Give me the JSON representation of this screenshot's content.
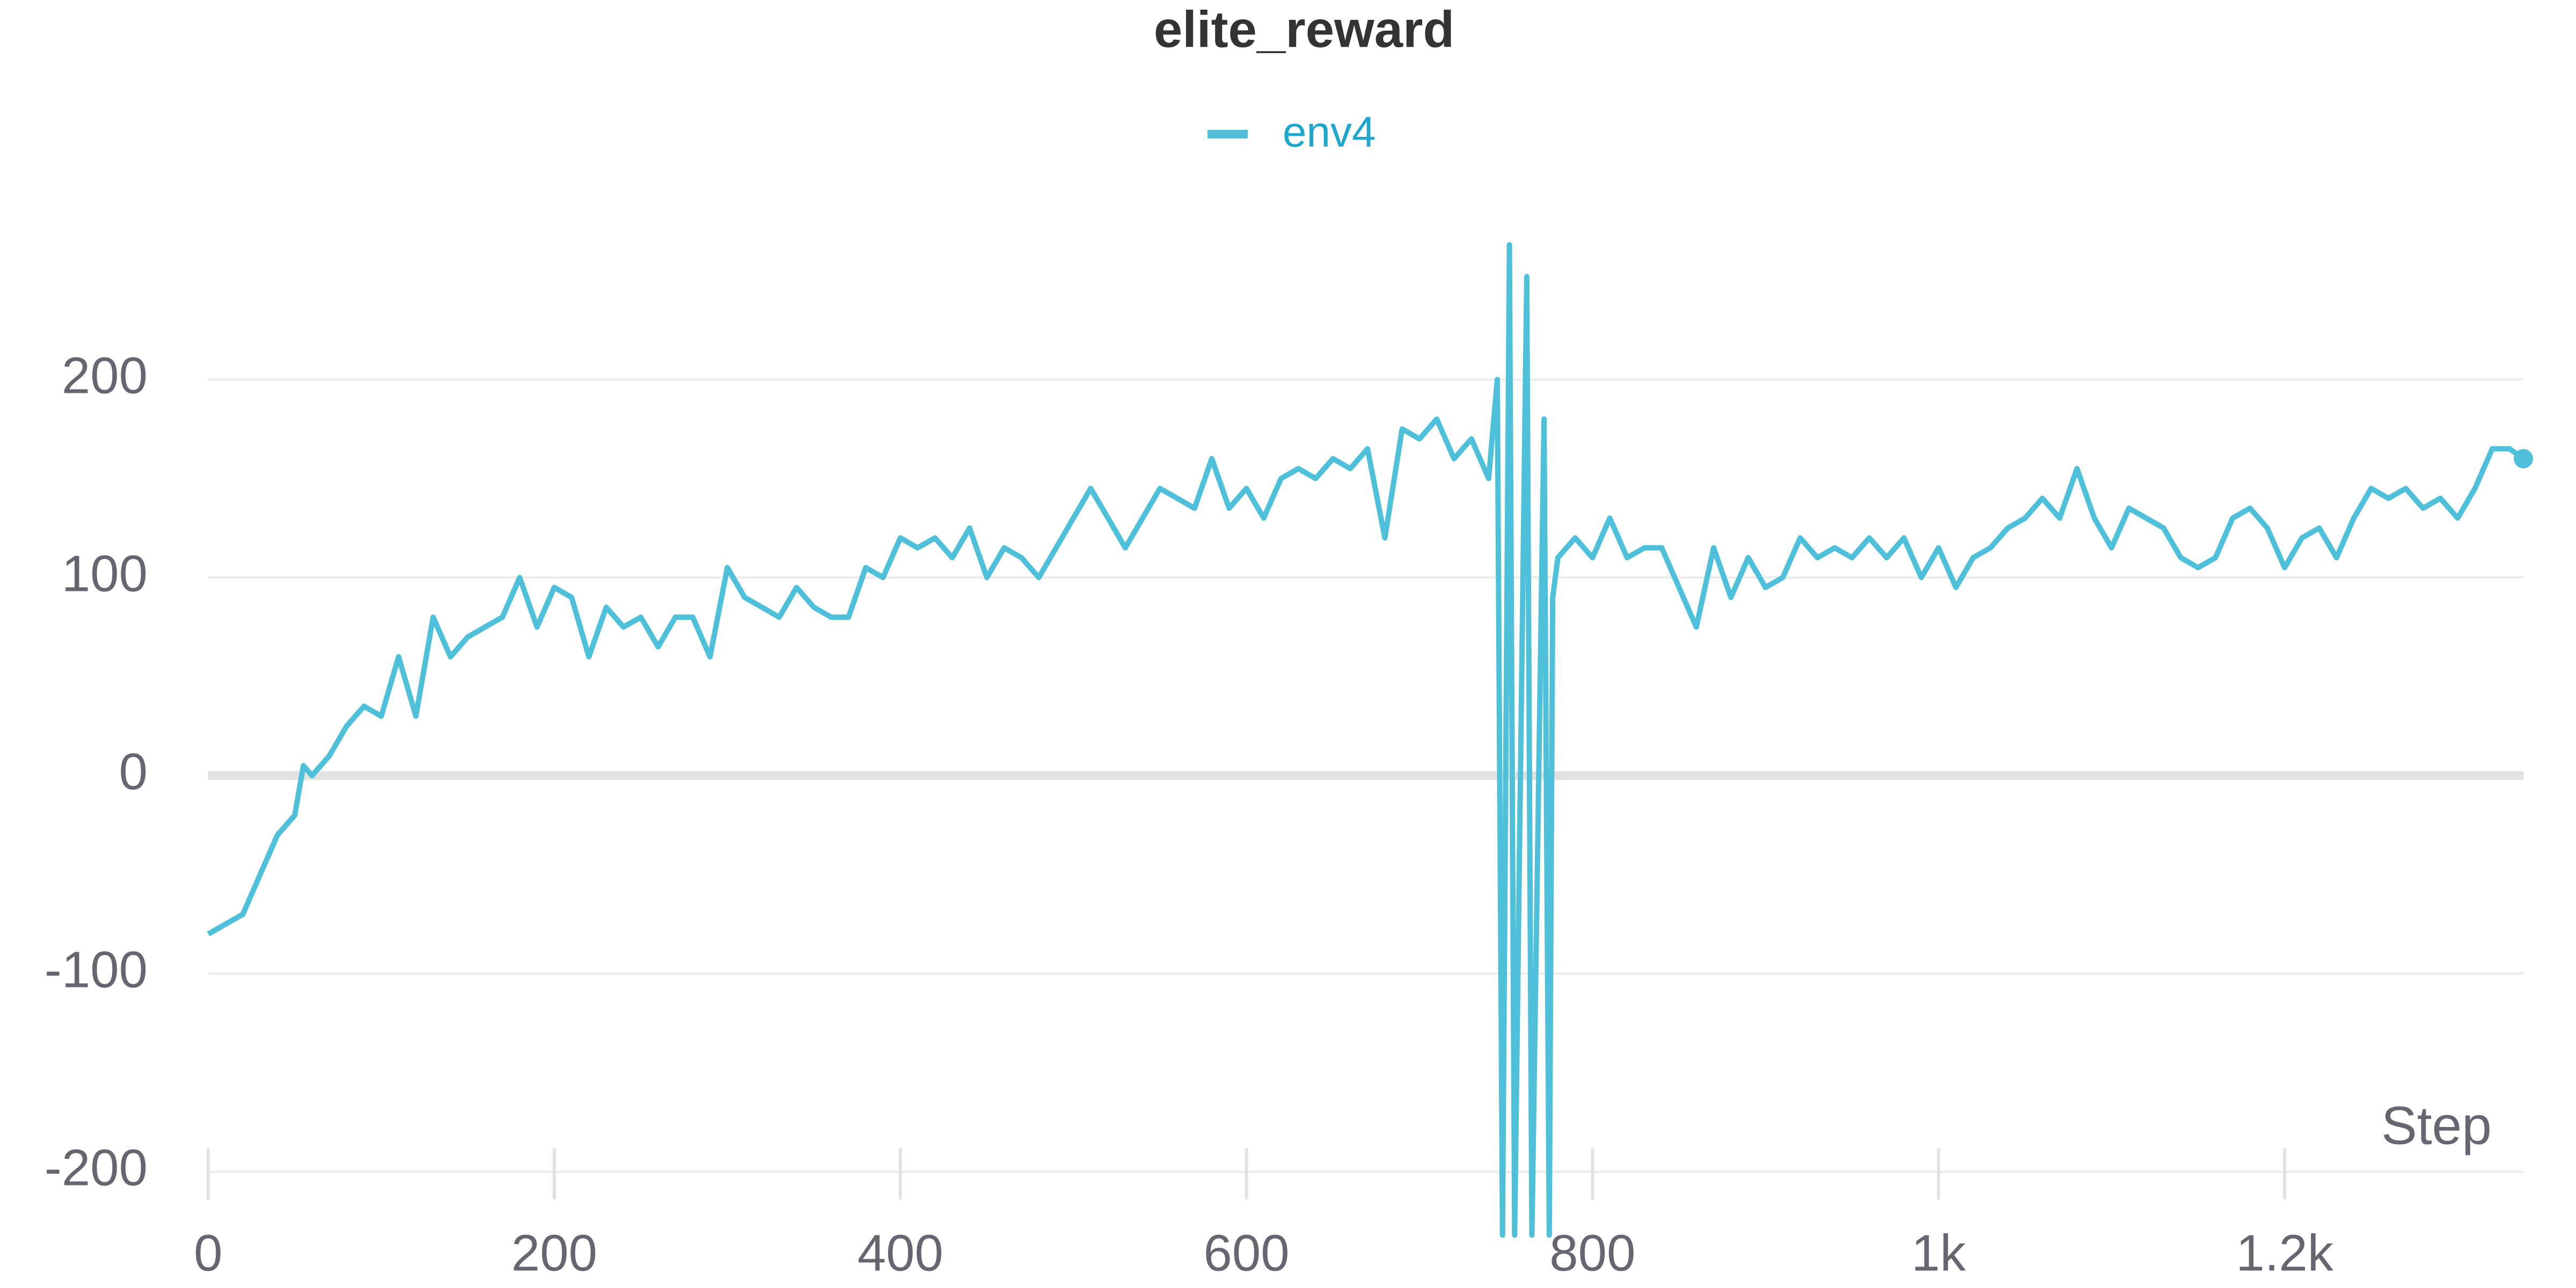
{
  "chart_data": {
    "type": "line",
    "title": "elite_reward",
    "x_label": "Step",
    "x": [
      0,
      10,
      20,
      30,
      40,
      50,
      55,
      60,
      70,
      80,
      90,
      100,
      110,
      120,
      130,
      140,
      150,
      160,
      170,
      180,
      190,
      200,
      210,
      220,
      230,
      240,
      250,
      260,
      270,
      280,
      290,
      300,
      310,
      320,
      330,
      340,
      350,
      360,
      370,
      380,
      390,
      400,
      410,
      420,
      430,
      440,
      450,
      460,
      470,
      480,
      490,
      500,
      510,
      520,
      530,
      540,
      550,
      560,
      570,
      580,
      590,
      600,
      610,
      620,
      630,
      640,
      650,
      660,
      670,
      680,
      690,
      700,
      710,
      720,
      730,
      740,
      745,
      748,
      752,
      755,
      762,
      765,
      772,
      775,
      777,
      780,
      790,
      800,
      810,
      820,
      830,
      840,
      850,
      860,
      870,
      880,
      890,
      900,
      910,
      920,
      930,
      940,
      950,
      960,
      970,
      980,
      990,
      1000,
      1010,
      1020,
      1030,
      1040,
      1050,
      1060,
      1070,
      1080,
      1090,
      1100,
      1110,
      1120,
      1130,
      1140,
      1150,
      1160,
      1170,
      1180,
      1190,
      1200,
      1210,
      1220,
      1230,
      1240,
      1250,
      1260,
      1270,
      1280,
      1290,
      1300,
      1310,
      1320,
      1330,
      1338
    ],
    "series": [
      {
        "name": "env4",
        "color": "#4fc0d9",
        "values": [
          -80,
          -75,
          -70,
          -50,
          -30,
          -20,
          5,
          0,
          10,
          25,
          35,
          30,
          60,
          30,
          80,
          60,
          70,
          75,
          80,
          100,
          75,
          95,
          90,
          60,
          85,
          75,
          80,
          65,
          80,
          80,
          60,
          105,
          90,
          85,
          80,
          95,
          85,
          80,
          80,
          105,
          100,
          120,
          115,
          120,
          110,
          125,
          100,
          115,
          110,
          100,
          115,
          130,
          145,
          130,
          115,
          130,
          145,
          140,
          135,
          160,
          135,
          145,
          130,
          150,
          155,
          150,
          160,
          155,
          165,
          120,
          175,
          170,
          180,
          160,
          170,
          150,
          200,
          -232,
          268,
          -232,
          252,
          -232,
          180,
          -232,
          90,
          110,
          120,
          110,
          130,
          110,
          115,
          115,
          95,
          75,
          115,
          90,
          110,
          95,
          100,
          120,
          110,
          115,
          110,
          120,
          110,
          120,
          100,
          115,
          95,
          110,
          115,
          125,
          130,
          140,
          130,
          155,
          130,
          115,
          135,
          130,
          125,
          110,
          105,
          110,
          130,
          135,
          125,
          105,
          120,
          125,
          110,
          130,
          145,
          140,
          145,
          135,
          140,
          130,
          145,
          165,
          165,
          160
        ]
      }
    ],
    "xlim": [
      0,
      1338
    ],
    "xticks": [
      0,
      200,
      400,
      600,
      800,
      {
        "value": 1000,
        "label": "1k"
      },
      {
        "value": 1200,
        "label": "1.2k"
      }
    ],
    "ylim": [
      -240,
      300
    ],
    "yticks": [
      -200,
      -100,
      0,
      100,
      200
    ],
    "grid": true,
    "legend": "top"
  }
}
